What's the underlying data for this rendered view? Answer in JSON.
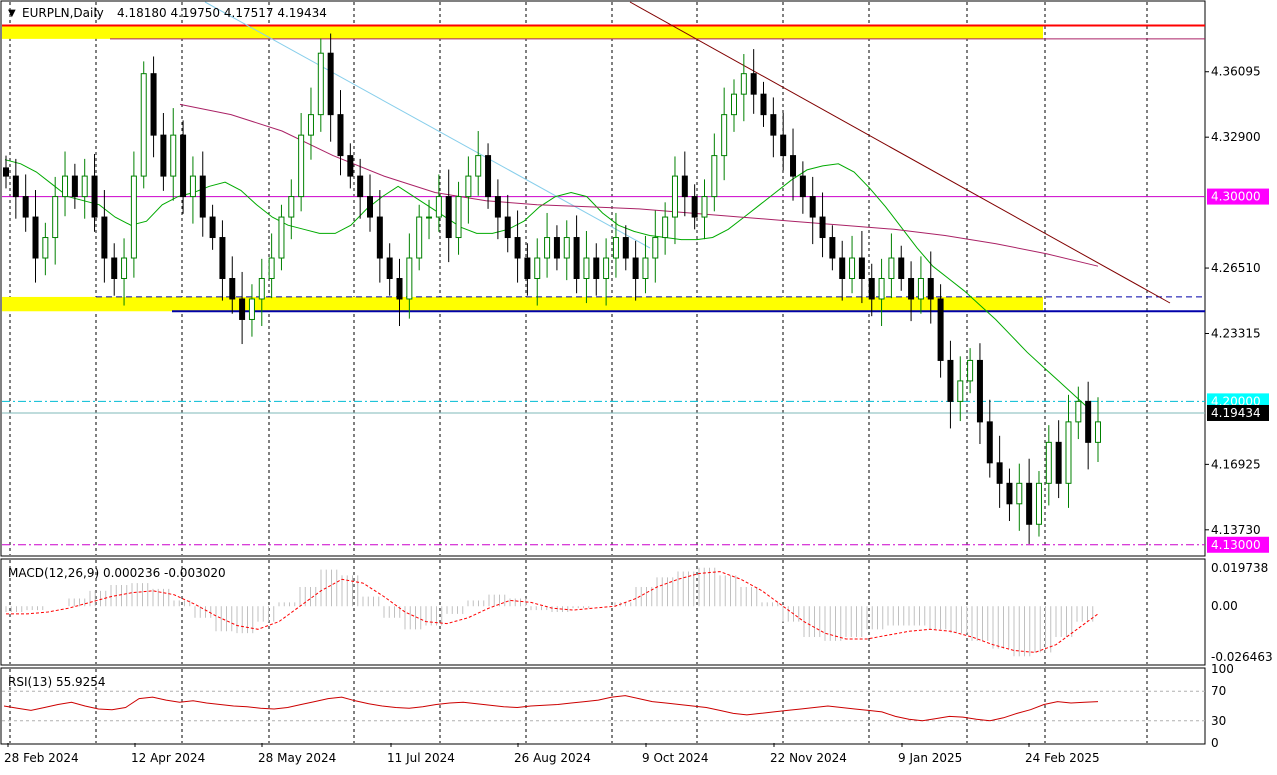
{
  "header": {
    "symbol_label": "EURPLN,Daily",
    "ohlc_label": "4.18180 4.19750 4.17517 4.19434"
  },
  "price_axis": {
    "ticks": [
      "4.36095",
      "4.32900",
      "4.26510",
      "4.23315",
      "4.16925",
      "4.13730"
    ],
    "tick_values": [
      4.36095,
      4.329,
      4.2651,
      4.23315,
      4.16925,
      4.1373
    ],
    "badges": [
      {
        "text": "4.30000",
        "value": 4.3,
        "bg": "#ff00ff",
        "fg": "#ffffff"
      },
      {
        "text": "4.20000",
        "value": 4.2,
        "bg": "#00ffff",
        "fg": "#ffffff"
      },
      {
        "text": "4.19434",
        "value": 4.19434,
        "bg": "#000000",
        "fg": "#ffffff"
      },
      {
        "text": "4.13000",
        "value": 4.13,
        "bg": "#ff00ff",
        "fg": "#ffffff"
      }
    ]
  },
  "macd": {
    "label": "MACD(12,26,9) 0.000236 -0.003020",
    "ticks": [
      "0.019738",
      "0.00",
      "-0.026463"
    ],
    "tick_values": [
      0.019738,
      0.0,
      -0.026463
    ]
  },
  "rsi": {
    "label": "RSI(13) 55.9254",
    "ticks": [
      "100",
      "70",
      "30",
      "0"
    ],
    "tick_values": [
      100,
      70,
      30,
      0
    ],
    "levels": [
      70,
      30
    ]
  },
  "x_axis": {
    "labels": [
      "28 Feb 2024",
      "12 Apr 2024",
      "28 May 2024",
      "11 Jul 2024",
      "26 Aug 2024",
      "9 Oct 2024",
      "22 Nov 2024",
      "9 Jan 2025",
      "24 Feb 2025"
    ]
  },
  "colors": {
    "bull": "#008000",
    "bear": "#000000",
    "ma_fast": "#00aa00",
    "ma_slow": "#aa2266",
    "zone": "#ffff00",
    "resistance": "#ff0000",
    "support": "#0000aa",
    "trend_upper": "#800000",
    "trend_channel": "#87ceeb",
    "macd_hist": "#c0c0c0",
    "macd_signal": "#ff0000",
    "rsi_line": "#cc0000"
  },
  "chart_data": {
    "type": "candlestick",
    "symbol": "EURPLN",
    "timeframe": "Daily",
    "last_ohlc": {
      "open": 4.1818,
      "high": 4.1975,
      "low": 4.17517,
      "close": 4.19434
    },
    "ylim": [
      4.125,
      4.395
    ],
    "horizontal_levels": [
      4.3,
      4.2,
      4.13
    ],
    "zones": [
      {
        "from": 4.377,
        "to": 4.3835
      },
      {
        "from": 4.244,
        "to": 4.251
      }
    ],
    "series_close": [
      4.31,
      4.3,
      4.29,
      4.27,
      4.28,
      4.3,
      4.31,
      4.3,
      4.31,
      4.29,
      4.27,
      4.26,
      4.27,
      4.31,
      4.36,
      4.33,
      4.31,
      4.33,
      4.3,
      4.31,
      4.29,
      4.28,
      4.26,
      4.25,
      4.24,
      4.25,
      4.26,
      4.27,
      4.29,
      4.3,
      4.33,
      4.34,
      4.37,
      4.34,
      4.32,
      4.31,
      4.3,
      4.29,
      4.27,
      4.26,
      4.25,
      4.27,
      4.29,
      4.29,
      4.3,
      4.28,
      4.3,
      4.31,
      4.32,
      4.3,
      4.29,
      4.28,
      4.27,
      4.26,
      4.27,
      4.28,
      4.27,
      4.28,
      4.26,
      4.27,
      4.26,
      4.27,
      4.28,
      4.27,
      4.26,
      4.27,
      4.28,
      4.29,
      4.31,
      4.3,
      4.29,
      4.3,
      4.32,
      4.34,
      4.35,
      4.36,
      4.35,
      4.34,
      4.33,
      4.32,
      4.31,
      4.3,
      4.29,
      4.28,
      4.27,
      4.26,
      4.27,
      4.26,
      4.25,
      4.26,
      4.27,
      4.26,
      4.25,
      4.26,
      4.25,
      4.22,
      4.2,
      4.21,
      4.22,
      4.19,
      4.17,
      4.16,
      4.15,
      4.16,
      4.14,
      4.16,
      4.18,
      4.16,
      4.19,
      4.2,
      4.18,
      4.19
    ],
    "ma_fast": [
      4.318,
      4.316,
      4.312,
      4.306,
      4.3,
      4.298,
      4.296,
      4.29,
      4.286,
      4.288,
      4.296,
      4.3,
      4.302,
      4.305,
      4.307,
      4.303,
      4.296,
      4.29,
      4.286,
      4.284,
      4.282,
      4.282,
      4.286,
      4.294,
      4.3,
      4.305,
      4.3,
      4.295,
      4.29,
      4.285,
      4.282,
      4.282,
      4.284,
      4.288,
      4.295,
      4.3,
      4.302,
      4.3,
      4.292,
      4.286,
      4.283,
      4.281,
      4.28,
      4.279,
      4.279,
      4.28,
      4.284,
      4.29,
      4.296,
      4.302,
      4.308,
      4.313,
      4.315,
      4.316,
      4.312,
      4.304,
      4.295,
      4.285,
      4.275,
      4.266,
      4.26,
      4.254,
      4.247,
      4.24,
      4.232,
      4.224,
      4.217,
      4.21,
      4.203,
      4.196
    ],
    "ma_slow": [
      4.345,
      4.34,
      4.332,
      4.32,
      4.31,
      4.302,
      4.298,
      4.296,
      4.295,
      4.294,
      4.292,
      4.29,
      4.288,
      4.286,
      4.284,
      4.281,
      4.277,
      4.272,
      4.266
    ],
    "macd_hist": [
      -0.003,
      -0.002,
      0.0,
      0.004,
      0.008,
      0.011,
      0.012,
      0.009,
      0.003,
      -0.006,
      -0.013,
      -0.014,
      -0.008,
      0.002,
      0.01,
      0.019,
      0.016,
      0.005,
      -0.006,
      -0.012,
      -0.01,
      -0.004,
      0.003,
      0.006,
      0.004,
      -0.002,
      -0.003,
      -0.001,
      0.0,
      0.002,
      0.01,
      0.015,
      0.018,
      0.02,
      0.016,
      0.01,
      0.002,
      -0.008,
      -0.016,
      -0.018,
      -0.016,
      -0.012,
      -0.01,
      -0.01,
      -0.012,
      -0.014,
      -0.018,
      -0.022,
      -0.026,
      -0.024,
      -0.016,
      -0.008,
      0.0
    ],
    "macd_signal": [
      -0.004,
      -0.004,
      -0.003,
      -0.001,
      0.002,
      0.005,
      0.007,
      0.008,
      0.006,
      0.001,
      -0.005,
      -0.01,
      -0.012,
      -0.008,
      0.0,
      0.008,
      0.014,
      0.012,
      0.005,
      -0.003,
      -0.008,
      -0.009,
      -0.006,
      -0.001,
      0.003,
      0.002,
      -0.001,
      -0.002,
      -0.001,
      0.0,
      0.004,
      0.01,
      0.014,
      0.017,
      0.018,
      0.014,
      0.008,
      0.0,
      -0.008,
      -0.014,
      -0.017,
      -0.017,
      -0.015,
      -0.013,
      -0.012,
      -0.013,
      -0.016,
      -0.02,
      -0.023,
      -0.024,
      -0.02,
      -0.012,
      -0.004
    ],
    "rsi_values": [
      50,
      47,
      44,
      48,
      52,
      55,
      50,
      46,
      45,
      48,
      60,
      62,
      58,
      55,
      57,
      54,
      52,
      50,
      49,
      47,
      46,
      48,
      52,
      56,
      60,
      62,
      57,
      53,
      50,
      48,
      47,
      49,
      52,
      54,
      55,
      53,
      51,
      49,
      48,
      50,
      51,
      52,
      54,
      56,
      58,
      62,
      64,
      60,
      56,
      54,
      52,
      50,
      48,
      44,
      40,
      38,
      40,
      42,
      44,
      46,
      48,
      50,
      48,
      46,
      44,
      42,
      36,
      32,
      30,
      33,
      36,
      35,
      32,
      30,
      34,
      40,
      45,
      52,
      56,
      54,
      55,
      56
    ]
  }
}
